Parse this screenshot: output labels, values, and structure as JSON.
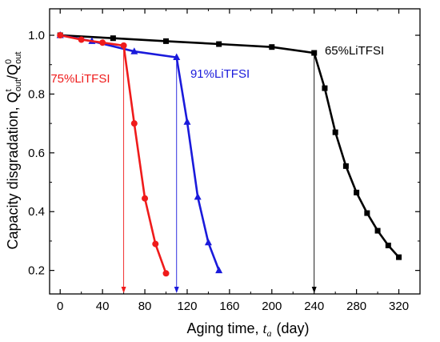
{
  "chart_data": {
    "type": "line",
    "xlabel": "Aging time, t_a (day)",
    "xlabel_parts": {
      "prefix": "Aging time, ",
      "var": "t",
      "sub": "a",
      "unit": "(day)"
    },
    "ylabel": "Capacity disgradation, Q^t_out/Q^0_out",
    "ylabel_parts": {
      "prefix": "Capacity disgradation, ",
      "Q1": "Q",
      "sup1": "t",
      "sub1": "out",
      "slash": "/",
      "Q2": "Q",
      "sup2": "0",
      "sub2": "out"
    },
    "xlim": [
      -10,
      340
    ],
    "ylim": [
      0.12,
      1.09
    ],
    "x_ticks": [
      0,
      40,
      80,
      120,
      160,
      200,
      240,
      280,
      320
    ],
    "y_ticks": [
      0.2,
      0.4,
      0.6,
      0.8,
      1.0
    ],
    "x_tick_labels": [
      "0",
      "40",
      "80",
      "120",
      "160",
      "200",
      "240",
      "280",
      "320"
    ],
    "y_tick_labels": [
      "0.2",
      "0.4",
      "0.6",
      "0.8",
      "1.0"
    ],
    "grid": false,
    "series": [
      {
        "name": "65%LiTFSI",
        "color": "#000000",
        "marker": "square",
        "x": [
          0,
          50,
          100,
          150,
          200,
          240,
          250,
          260,
          270,
          280,
          290,
          300,
          310,
          320
        ],
        "y": [
          1.0,
          0.99,
          0.98,
          0.97,
          0.96,
          0.94,
          0.82,
          0.67,
          0.555,
          0.465,
          0.395,
          0.335,
          0.285,
          0.245
        ],
        "drop_x": 240,
        "label_anchor": [
          250,
          0.935
        ]
      },
      {
        "name": "91%LiTFSI",
        "color": "#1a1adb",
        "marker": "triangle",
        "x": [
          0,
          30,
          70,
          110,
          120,
          130,
          140,
          150
        ],
        "y": [
          1.0,
          0.98,
          0.945,
          0.925,
          0.705,
          0.45,
          0.295,
          0.2
        ],
        "drop_x": 110,
        "label_anchor": [
          123,
          0.855
        ]
      },
      {
        "name": "75%LiTFSI",
        "color": "#ef1b1b",
        "marker": "circle",
        "x": [
          0,
          20,
          40,
          60,
          70,
          80,
          90,
          100
        ],
        "y": [
          1.0,
          0.985,
          0.975,
          0.965,
          0.7,
          0.445,
          0.29,
          0.19
        ],
        "drop_x": 60,
        "label_anchor": [
          -9,
          0.84
        ]
      }
    ]
  }
}
